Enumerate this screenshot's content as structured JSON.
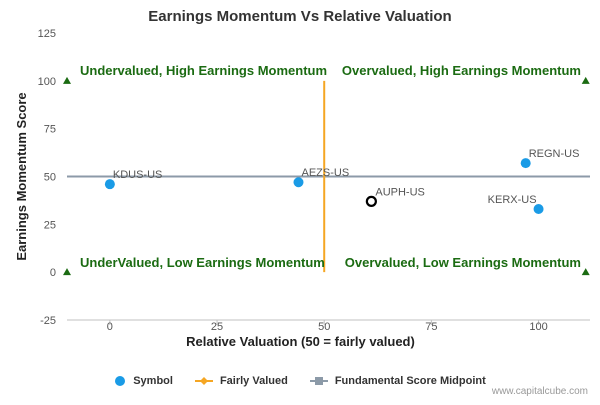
{
  "chart_data": {
    "type": "scatter",
    "title": "Earnings Momentum Vs Relative Valuation",
    "xlabel": "Relative Valuation (50 = fairly valued)",
    "ylabel": "Earnings Momentum Score",
    "xlim": [
      -10,
      112
    ],
    "ylim": [
      -25,
      125
    ],
    "x_ticks": [
      0,
      25,
      50,
      75,
      100
    ],
    "y_ticks": [
      -25,
      0,
      25,
      50,
      75,
      100,
      125
    ],
    "grid": false,
    "legend_position": "bottom",
    "series": [
      {
        "name": "Symbol",
        "color": "#1a9be6",
        "points": [
          {
            "label": "KDUS-US",
            "x": 0,
            "y": 46
          },
          {
            "label": "AEZS-US",
            "x": 44,
            "y": 47
          },
          {
            "label": "REGN-US",
            "x": 97,
            "y": 57
          },
          {
            "label": "KERX-US",
            "x": 100,
            "y": 33
          }
        ]
      },
      {
        "name": "Fairly Valued",
        "color": "#f5a623",
        "line": {
          "x": 50,
          "y_from": 0,
          "y_to": 100
        }
      },
      {
        "name": "Fundamental Score Midpoint",
        "color": "#8c9aa8",
        "line": {
          "y": 50,
          "x_from": -10,
          "x_to": 112
        }
      }
    ],
    "highlight": {
      "label": "AUPH-US",
      "x": 61,
      "y": 37
    },
    "quadrant_labels": [
      "Undervalued, High Earnings Momentum",
      "Overvalued, High Earnings Momentum",
      "UnderValued, Low Earnings Momentum",
      "Overvalued, Low Earnings Momentum"
    ],
    "corner_markers": [
      {
        "x": -10,
        "y": 100
      },
      {
        "x": 111,
        "y": 100
      },
      {
        "x": -10,
        "y": 0
      },
      {
        "x": 111,
        "y": 0
      }
    ],
    "colors": {
      "quadrant_text": "#1b6b12",
      "marker": "#1b6b12",
      "axis_text": "#555555"
    }
  },
  "legend": {
    "symbol": "Symbol",
    "fairly": "Fairly Valued",
    "midpoint": "Fundamental Score Midpoint"
  },
  "credit": "www.capitalcube.com"
}
